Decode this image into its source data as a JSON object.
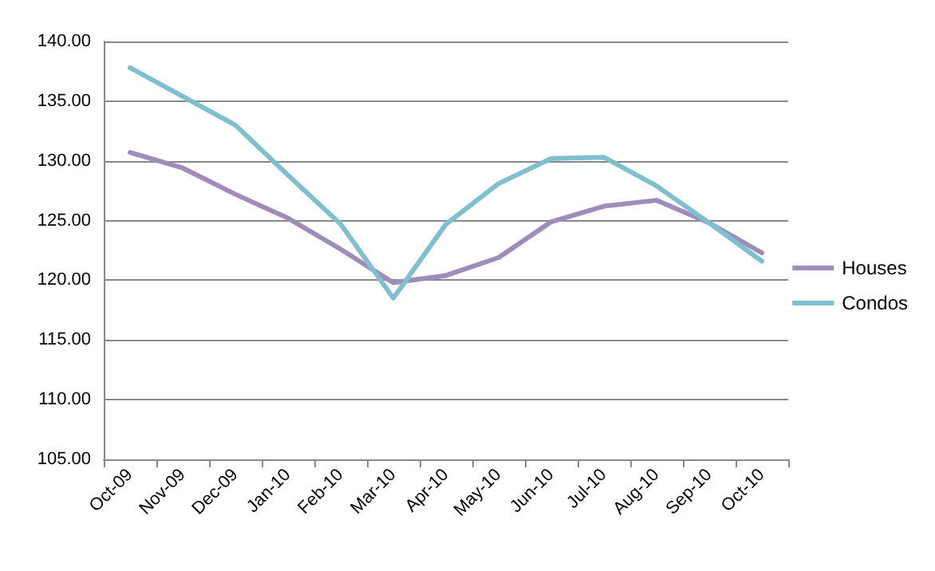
{
  "chart_data": {
    "type": "line",
    "categories": [
      "Oct-09",
      "Nov-09",
      "Dec-09",
      "Jan-10",
      "Feb-10",
      "Mar-10",
      "Apr-10",
      "May-10",
      "Jun-10",
      "Jul-10",
      "Aug-10",
      "Sep-10",
      "Oct-10"
    ],
    "series": [
      {
        "name": "Houses",
        "color": "#a08cbc",
        "values": [
          130.7,
          129.4,
          127.2,
          125.2,
          122.6,
          119.8,
          120.4,
          121.9,
          124.9,
          126.2,
          126.7,
          124.8,
          122.3
        ]
      },
      {
        "name": "Condos",
        "color": "#7fbfd0",
        "values": [
          137.8,
          135.4,
          133.0,
          128.8,
          124.7,
          118.5,
          124.7,
          128.1,
          130.2,
          130.3,
          127.9,
          124.8,
          121.6
        ]
      }
    ],
    "ylim": [
      105,
      140
    ],
    "yticks": [
      {
        "value": 105,
        "label": "105.00"
      },
      {
        "value": 110,
        "label": "110.00"
      },
      {
        "value": 115,
        "label": "115.00"
      },
      {
        "value": 120,
        "label": "120.00"
      },
      {
        "value": 125,
        "label": "125.00"
      },
      {
        "value": 130,
        "label": "130.00"
      },
      {
        "value": 135,
        "label": "135.00"
      },
      {
        "value": 140,
        "label": "140.00"
      }
    ],
    "grid": "y",
    "legend": "right",
    "marker": "none",
    "line_style": "solid"
  }
}
